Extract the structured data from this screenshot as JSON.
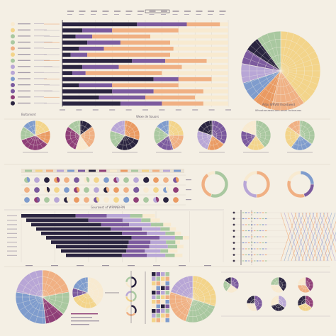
{
  "palette": {
    "background": "#f4efe4",
    "navy": "#2a2440",
    "purple": "#7b5a9e",
    "lavender": "#b8a6d6",
    "sage": "#a9c8a0",
    "peach": "#f0b083",
    "orange": "#ea9a62",
    "butter": "#f3d48a",
    "cream": "#f8ead0",
    "blue": "#7f9ccd",
    "plum": "#8f3f78",
    "grid": "#d8d0c4"
  },
  "texts": {
    "top_legend_title": "Bultaniont",
    "top_axis_caption": "Wexe de Sauors",
    "big_pie_caption": "Arbu WRVW Rsonbwed",
    "big_pie_subcaption": "Whvatronaeauuarn arnar tnrbrauros",
    "mid_bar_title": "Gourawst of WRNNB-RN"
  },
  "chart_data": [
    {
      "type": "bar",
      "stacked": true,
      "orientation": "horizontal",
      "categories": [
        "1",
        "2",
        "3",
        "4",
        "5",
        "6",
        "7",
        "8",
        "9",
        "10",
        "11",
        "12",
        "13",
        "14"
      ],
      "series": [
        {
          "color": "navy",
          "values": [
            45,
            12,
            8,
            15,
            10,
            5,
            42,
            12,
            6,
            55,
            10,
            30,
            22,
            35
          ]
        },
        {
          "color": "purple",
          "values": [
            30,
            18,
            10,
            20,
            15,
            10,
            20,
            22,
            8,
            15,
            20,
            25,
            28,
            25
          ]
        },
        {
          "color": "peach",
          "values": [
            20,
            40,
            35,
            30,
            42,
            50,
            25,
            38,
            46,
            20,
            40,
            30,
            30,
            25
          ]
        },
        {
          "color": "cream",
          "values": [
            5,
            30,
            47,
            35,
            33,
            35,
            13,
            28,
            40,
            10,
            30,
            15,
            20,
            15
          ]
        }
      ],
      "xlim": [
        0,
        100
      ],
      "grid": true
    },
    {
      "type": "pie",
      "style": "radial",
      "rings": 5,
      "slices": [
        {
          "color": "butter",
          "value": 40
        },
        {
          "color": "peach",
          "value": 14
        },
        {
          "color": "orange",
          "value": 8
        },
        {
          "color": "blue",
          "value": 8
        },
        {
          "color": "lavender",
          "value": 8
        },
        {
          "color": "purple",
          "value": 6
        },
        {
          "color": "navy",
          "value": 6
        },
        {
          "color": "sage",
          "value": 10
        }
      ]
    },
    {
      "type": "pie",
      "style": "radial",
      "small_multiples": [
        [
          {
            "color": "butter",
            "value": 20
          },
          {
            "color": "orange",
            "value": 15
          },
          {
            "color": "plum",
            "value": 35
          },
          {
            "color": "sage",
            "value": 15
          },
          {
            "color": "blue",
            "value": 15
          }
        ],
        [
          {
            "color": "navy",
            "value": 15
          },
          {
            "color": "peach",
            "value": 25
          },
          {
            "color": "cream",
            "value": 15
          },
          {
            "color": "plum",
            "value": 30
          },
          {
            "color": "sage",
            "value": 15
          }
        ],
        [
          {
            "color": "orange",
            "value": 30
          },
          {
            "color": "navy",
            "value": 30
          },
          {
            "color": "sage",
            "value": 20
          },
          {
            "color": "lavender",
            "value": 20
          }
        ],
        [
          {
            "color": "butter",
            "value": 25
          },
          {
            "color": "peach",
            "value": 20
          },
          {
            "color": "purple",
            "value": 20
          },
          {
            "color": "sage",
            "value": 20
          },
          {
            "color": "blue",
            "value": 15
          }
        ],
        [
          {
            "color": "purple",
            "value": 35
          },
          {
            "color": "orange",
            "value": 20
          },
          {
            "color": "lavender",
            "value": 25
          },
          {
            "color": "navy",
            "value": 20
          }
        ],
        [
          {
            "color": "sage",
            "value": 40
          },
          {
            "color": "butter",
            "value": 20
          },
          {
            "color": "purple",
            "value": 20
          },
          {
            "color": "cream",
            "value": 20
          }
        ],
        [
          {
            "color": "sage",
            "value": 35
          },
          {
            "color": "blue",
            "value": 25
          },
          {
            "color": "butter",
            "value": 25
          },
          {
            "color": "peach",
            "value": 15
          }
        ]
      ]
    },
    {
      "type": "pie",
      "style": "donut",
      "small_multiples": [
        [
          {
            "color": "sage",
            "value": 55
          },
          {
            "color": "peach",
            "value": 35
          },
          {
            "color": "cream",
            "value": 10
          }
        ],
        [
          {
            "color": "peach",
            "value": 50
          },
          {
            "color": "lavender",
            "value": 30
          },
          {
            "color": "cream",
            "value": 20
          }
        ],
        [
          {
            "color": "blue",
            "value": 25
          },
          {
            "color": "purple",
            "value": 20
          },
          {
            "color": "peach",
            "value": 35
          },
          {
            "color": "cream",
            "value": 20
          }
        ]
      ]
    },
    {
      "type": "bar",
      "stacked": true,
      "orientation": "horizontal",
      "categories": [
        "1",
        "2",
        "3",
        "4",
        "5",
        "6",
        "7",
        "8",
        "9",
        "10"
      ],
      "series": [
        {
          "color": "navy",
          "values": [
            35,
            40,
            45,
            48,
            52,
            55,
            50,
            46,
            42,
            36
          ]
        },
        {
          "color": "purple",
          "values": [
            20,
            22,
            18,
            20,
            16,
            18,
            14,
            14,
            12,
            16
          ]
        },
        {
          "color": "lavender",
          "values": [
            15,
            12,
            14,
            12,
            12,
            10,
            10,
            12,
            10,
            12
          ]
        },
        {
          "color": "sage",
          "values": [
            8,
            6,
            8,
            6,
            6,
            5,
            6,
            6,
            5,
            6
          ]
        },
        {
          "color": "cream",
          "values": [
            8,
            6,
            5,
            4,
            4,
            4,
            3,
            4,
            6,
            5
          ]
        }
      ],
      "xlim": [
        0,
        130
      ]
    },
    {
      "type": "pie",
      "style": "radial",
      "slices": [
        {
          "color": "peach",
          "value": 22
        },
        {
          "color": "sage",
          "value": 14
        },
        {
          "color": "plum",
          "value": 12
        },
        {
          "color": "blue",
          "value": 30
        },
        {
          "color": "lavender",
          "value": 22
        }
      ]
    },
    {
      "type": "pie",
      "style": "radial",
      "slices": [
        {
          "color": "cream",
          "value": 40
        },
        {
          "color": "butter",
          "value": 30
        },
        {
          "color": "purple",
          "value": 10
        },
        {
          "color": "blue",
          "value": 20
        }
      ]
    },
    {
      "type": "pie",
      "style": "donut",
      "small_multiples": [
        [
          {
            "color": "navy",
            "value": 50
          },
          {
            "color": "cream",
            "value": 25
          },
          {
            "color": "sage",
            "value": 25
          }
        ],
        [
          {
            "color": "sage",
            "value": 45
          },
          {
            "color": "butter",
            "value": 30
          },
          {
            "color": "lavender",
            "value": 25
          }
        ],
        [
          {
            "color": "navy",
            "value": 35
          },
          {
            "color": "peach",
            "value": 35
          },
          {
            "color": "cream",
            "value": 30
          }
        ]
      ]
    },
    {
      "type": "pie",
      "style": "radial",
      "slices": [
        {
          "color": "butter",
          "value": 30
        },
        {
          "color": "sage",
          "value": 25
        },
        {
          "color": "peach",
          "value": 25
        },
        {
          "color": "lavender",
          "value": 20
        }
      ]
    },
    {
      "type": "pie",
      "style": "radial",
      "small_multiples": [
        [
          {
            "color": "purple",
            "value": 35
          },
          {
            "color": "cream",
            "value": 25
          },
          {
            "color": "sage",
            "value": 25
          },
          {
            "color": "navy",
            "value": 15
          }
        ],
        [
          {
            "color": "navy",
            "value": 40
          },
          {
            "color": "cream",
            "value": 35
          },
          {
            "color": "sage",
            "value": 25
          }
        ],
        [
          {
            "color": "plum",
            "value": 40
          },
          {
            "color": "peach",
            "value": 35
          },
          {
            "color": "cream",
            "value": 25
          }
        ],
        [
          {
            "color": "purple",
            "value": 45
          },
          {
            "color": "cream",
            "value": 30
          },
          {
            "color": "navy",
            "value": 25
          }
        ],
        [
          {
            "color": "lavender",
            "value": 35
          },
          {
            "color": "navy",
            "value": 35
          },
          {
            "color": "cream",
            "value": 30
          }
        ],
        [
          {
            "color": "plum",
            "value": 35
          },
          {
            "color": "butter",
            "value": 35
          },
          {
            "color": "navy",
            "value": 30
          }
        ]
      ]
    }
  ]
}
